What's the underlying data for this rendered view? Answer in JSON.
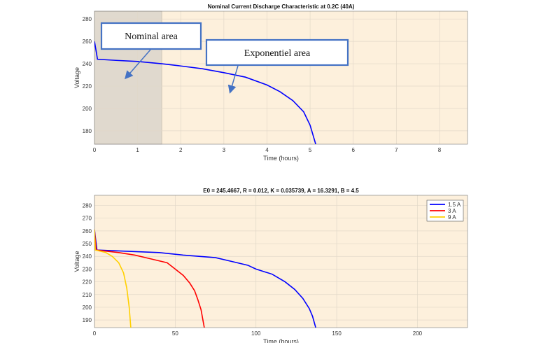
{
  "chart_data": [
    {
      "type": "line",
      "title": "Nominal Current Discharge Characteristic at 0.2C (40A)",
      "xlabel": "Time (hours)",
      "ylabel": "Voltage",
      "xlim": [
        0,
        8.65
      ],
      "ylim": [
        168,
        287
      ],
      "xticks": [
        0,
        1,
        2,
        3,
        4,
        5,
        6,
        7,
        8
      ],
      "yticks": [
        180,
        200,
        220,
        240,
        260,
        280
      ],
      "grid": true,
      "background": "#fdf0dc",
      "line_color": "#0000ff",
      "shaded_region": {
        "x": [
          0,
          1.56
        ],
        "color": "#e0d9ce"
      },
      "annotations": [
        {
          "text": "Nominal area"
        },
        {
          "text": "Exponentiel area"
        }
      ],
      "series": [
        {
          "x": [
            0,
            0.07,
            0.5,
            1,
            1.56,
            2,
            2.5,
            3,
            3.5,
            4,
            4.3,
            4.6,
            4.85,
            5.0,
            5.13
          ],
          "y": [
            260,
            244,
            243,
            242,
            240,
            238,
            235.5,
            232,
            228,
            221,
            215,
            207,
            197,
            185,
            168
          ]
        }
      ]
    },
    {
      "type": "line",
      "title": "E0 = 245.4667, R = 0.012, K = 0.035739, A = 16.3291, B = 4.5",
      "xlabel": "Time (hours)",
      "ylabel": "Voltage",
      "xlim": [
        0,
        231
      ],
      "ylim": [
        184,
        288
      ],
      "xticks": [
        0,
        50,
        100,
        150,
        200
      ],
      "yticks": [
        190,
        200,
        210,
        220,
        230,
        240,
        250,
        260,
        270,
        280
      ],
      "grid": true,
      "background": "#fdf0dc",
      "legend": "top-right",
      "series": [
        {
          "name": "1.5 A",
          "color": "#0000ff",
          "x": [
            0,
            1.5,
            20,
            40,
            55,
            75,
            85,
            95,
            100,
            110,
            118,
            124,
            129,
            133,
            135,
            137
          ],
          "y": [
            261,
            245,
            244,
            243,
            241,
            239,
            236,
            233,
            230,
            226,
            220,
            214,
            207,
            199,
            193,
            184
          ]
        },
        {
          "name": "3 A",
          "color": "#ff0000",
          "x": [
            0,
            1,
            15,
            25,
            35,
            45,
            50,
            55,
            59,
            62,
            64,
            66,
            68
          ],
          "y": [
            261,
            245,
            243,
            241,
            238,
            235,
            230,
            225,
            219,
            213,
            206,
            198,
            184
          ]
        },
        {
          "name": "9 A",
          "color": "#ffd000",
          "x": [
            0,
            0.5,
            7,
            11,
            15,
            18,
            20,
            21.5,
            22.5
          ],
          "y": [
            261,
            245,
            243,
            240,
            235,
            227,
            215,
            200,
            184
          ]
        }
      ]
    }
  ]
}
